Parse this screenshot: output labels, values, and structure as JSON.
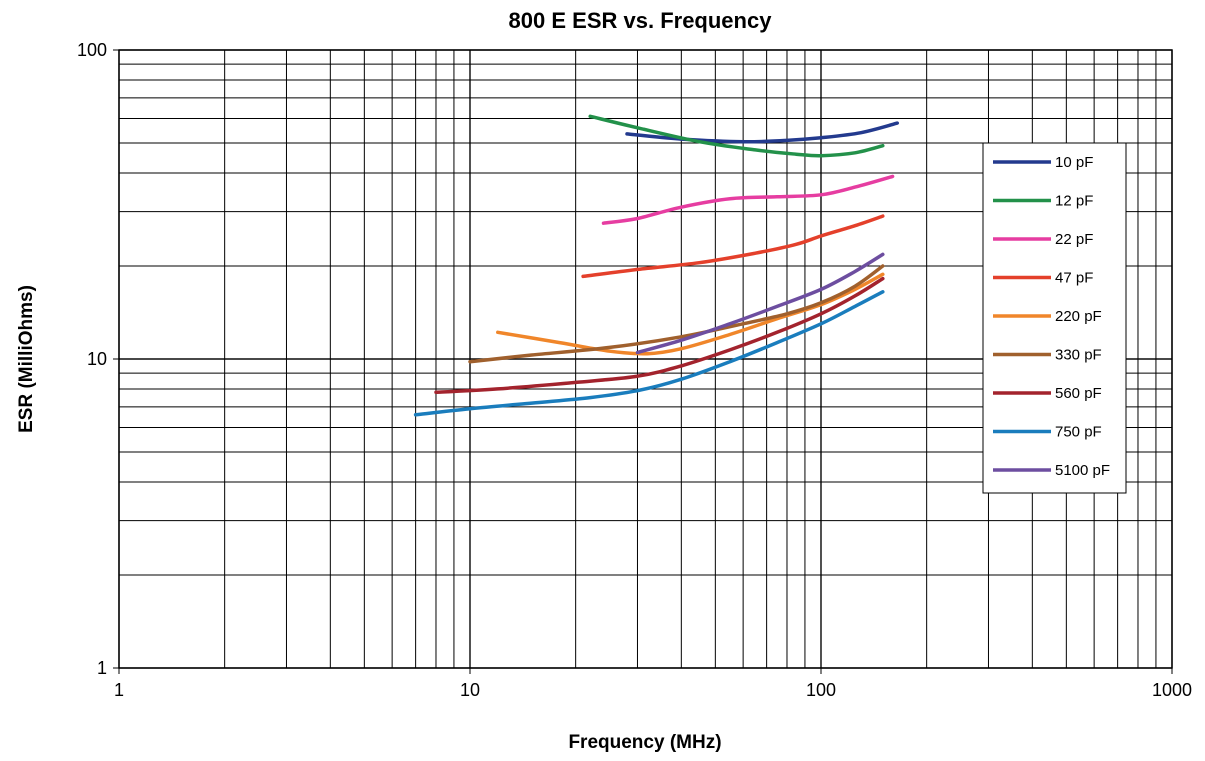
{
  "chart_data": {
    "type": "line",
    "title": "800 E ESR vs. Frequency",
    "xlabel": "Frequency (MHz)",
    "ylabel": "ESR (MilliOhms)",
    "xscale": "log",
    "yscale": "log",
    "xlim": [
      1,
      1000
    ],
    "ylim": [
      1,
      100
    ],
    "x_ticks": [
      1,
      10,
      100,
      1000
    ],
    "x_tick_labels": [
      "1",
      "10",
      "100",
      "1000"
    ],
    "y_ticks": [
      1,
      10,
      100
    ],
    "y_tick_labels": [
      "1",
      "10",
      "100"
    ],
    "grid": true,
    "legend_position": "right",
    "series": [
      {
        "name": "10 pF",
        "color": "#233a8e",
        "points": [
          [
            28,
            53.5
          ],
          [
            40,
            51.5
          ],
          [
            60,
            50.5
          ],
          [
            80,
            51
          ],
          [
            100,
            52
          ],
          [
            130,
            54
          ],
          [
            165,
            58
          ]
        ]
      },
      {
        "name": "12 pF",
        "color": "#23914a",
        "points": [
          [
            22,
            61
          ],
          [
            30,
            56
          ],
          [
            45,
            50.5
          ],
          [
            65,
            47.5
          ],
          [
            85,
            46
          ],
          [
            100,
            45.5
          ],
          [
            125,
            46.5
          ],
          [
            150,
            49
          ]
        ]
      },
      {
        "name": "22 pF",
        "color": "#e63da1",
        "points": [
          [
            24,
            27.5
          ],
          [
            30,
            28.5
          ],
          [
            40,
            31
          ],
          [
            55,
            33
          ],
          [
            75,
            33.5
          ],
          [
            100,
            34
          ],
          [
            125,
            36
          ],
          [
            160,
            39
          ]
        ]
      },
      {
        "name": "47 pF",
        "color": "#e4402b",
        "points": [
          [
            21,
            18.5
          ],
          [
            30,
            19.5
          ],
          [
            45,
            20.5
          ],
          [
            65,
            22
          ],
          [
            85,
            23.5
          ],
          [
            100,
            25
          ],
          [
            125,
            27
          ],
          [
            150,
            29
          ]
        ]
      },
      {
        "name": "220 pF",
        "color": "#f0862a",
        "points": [
          [
            12,
            12.2
          ],
          [
            18,
            11.3
          ],
          [
            25,
            10.6
          ],
          [
            32,
            10.4
          ],
          [
            40,
            10.8
          ],
          [
            55,
            12
          ],
          [
            75,
            13.5
          ],
          [
            100,
            15
          ],
          [
            125,
            16.8
          ],
          [
            150,
            18.8
          ]
        ]
      },
      {
        "name": "330 pF",
        "color": "#a0602d",
        "points": [
          [
            10,
            9.8
          ],
          [
            15,
            10.3
          ],
          [
            25,
            10.9
          ],
          [
            40,
            11.8
          ],
          [
            60,
            13
          ],
          [
            80,
            14
          ],
          [
            100,
            15.2
          ],
          [
            125,
            17.2
          ],
          [
            150,
            20
          ]
        ]
      },
      {
        "name": "560 pF",
        "color": "#a3232d",
        "points": [
          [
            8,
            7.8
          ],
          [
            12,
            8
          ],
          [
            20,
            8.4
          ],
          [
            30,
            8.8
          ],
          [
            40,
            9.5
          ],
          [
            55,
            10.7
          ],
          [
            75,
            12.2
          ],
          [
            100,
            14
          ],
          [
            125,
            16
          ],
          [
            150,
            18.2
          ]
        ]
      },
      {
        "name": "750 pF",
        "color": "#1a7dbd",
        "points": [
          [
            7,
            6.6
          ],
          [
            10,
            6.9
          ],
          [
            15,
            7.2
          ],
          [
            22,
            7.5
          ],
          [
            30,
            7.9
          ],
          [
            40,
            8.6
          ],
          [
            55,
            9.8
          ],
          [
            75,
            11.3
          ],
          [
            100,
            13
          ],
          [
            125,
            14.8
          ],
          [
            150,
            16.5
          ]
        ]
      },
      {
        "name": "5100 pF",
        "color": "#6d4ea0",
        "points": [
          [
            30,
            10.5
          ],
          [
            40,
            11.5
          ],
          [
            55,
            13
          ],
          [
            75,
            14.8
          ],
          [
            100,
            16.8
          ],
          [
            125,
            19.2
          ],
          [
            150,
            21.8
          ]
        ]
      }
    ]
  }
}
